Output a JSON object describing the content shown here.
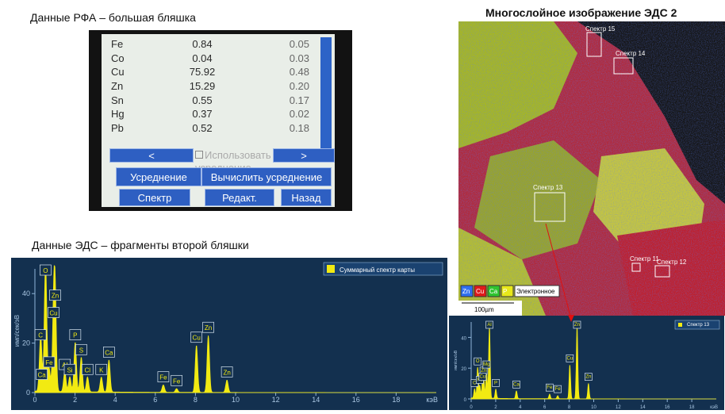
{
  "captions": {
    "xrf_title": "Данные РФА – большая бляшка",
    "eds_title": "Данные ЭДС – фрагменты второй бляшки",
    "map_title": "Многослойное изображение ЭДС 2"
  },
  "xrf": {
    "rows": [
      {
        "el": "Fe",
        "val": "0.84",
        "err": "0.05"
      },
      {
        "el": "Co",
        "val": "0.04",
        "err": "0.03"
      },
      {
        "el": "Cu",
        "val": "75.92",
        "err": "0.48"
      },
      {
        "el": "Zn",
        "val": "15.29",
        "err": "0.20"
      },
      {
        "el": "Sn",
        "val": "0.55",
        "err": "0.17"
      },
      {
        "el": "Hg",
        "val": "0.37",
        "err": "0.02"
      },
      {
        "el": "Pb",
        "val": "0.52",
        "err": "0.18"
      }
    ],
    "prev_label": "<",
    "next_label": ">",
    "average_checkbox": "Использовать усреднение",
    "btn_average": "Усреднение",
    "btn_compute": "Вычислить усреднение",
    "btn_spectrum": "Спектр",
    "btn_edit": "Редакт.",
    "btn_back": "Назад"
  },
  "map": {
    "spectra_labels": [
      "Спектр 15",
      "Спектр 14",
      "Спектр 13",
      "Спектр 12",
      "Спектр 11"
    ],
    "legend": [
      "Zn",
      "Cu",
      "Ca",
      "P",
      "Электронное"
    ],
    "legend_colors": [
      "#2f6ff0",
      "#e01a1a",
      "#2fc42f",
      "#e8e81a",
      "#ffffff"
    ],
    "scale_label": "100µm"
  },
  "chart_data": [
    {
      "type": "line",
      "title": "",
      "xlabel": "кэВ",
      "ylabel": "имп/сек/эВ",
      "xlim": [
        0,
        20
      ],
      "ylim": [
        0,
        50
      ],
      "xticks": [
        0,
        2,
        4,
        6,
        8,
        10,
        12,
        14,
        16,
        18
      ],
      "yticks": [
        0,
        20,
        40
      ],
      "legend": "Суммарный спектр карты",
      "legend_position": "top-right",
      "series_color": "#f2ea12",
      "peaks": [
        {
          "label": "C",
          "x": 0.28,
          "y": 20
        },
        {
          "label": "O",
          "x": 0.53,
          "y": 52
        },
        {
          "label": "Fe",
          "x": 0.71,
          "y": 9
        },
        {
          "label": "Ca",
          "x": 0.34,
          "y": 4
        },
        {
          "label": "Zn",
          "x": 1.01,
          "y": 36
        },
        {
          "label": "Cu",
          "x": 0.93,
          "y": 29
        },
        {
          "label": "Al",
          "x": 1.49,
          "y": 8
        },
        {
          "label": "Si",
          "x": 1.74,
          "y": 6
        },
        {
          "label": "P",
          "x": 2.01,
          "y": 20
        },
        {
          "label": "S",
          "x": 2.31,
          "y": 14
        },
        {
          "label": "Cl",
          "x": 2.62,
          "y": 6
        },
        {
          "label": "K",
          "x": 3.31,
          "y": 6
        },
        {
          "label": "Ca",
          "x": 3.69,
          "y": 13
        },
        {
          "label": "Fe",
          "x": 6.4,
          "y": 3
        },
        {
          "label": "Fe",
          "x": 7.06,
          "y": 1.5
        },
        {
          "label": "Cu",
          "x": 8.05,
          "y": 19
        },
        {
          "label": "Zn",
          "x": 8.64,
          "y": 23
        },
        {
          "label": "Zn",
          "x": 9.57,
          "y": 5
        }
      ]
    },
    {
      "type": "line",
      "title": "",
      "xlabel": "кэВ",
      "ylabel": "имп/сек/эВ",
      "xlim": [
        0,
        20
      ],
      "ylim": [
        0,
        50
      ],
      "xticks": [
        0,
        2,
        4,
        6,
        8,
        10,
        12,
        14,
        16,
        18
      ],
      "yticks": [
        0,
        20,
        40
      ],
      "legend": "Спектр 13",
      "legend_position": "top-right",
      "series_color": "#f2ea12",
      "peaks": [
        {
          "label": "C",
          "x": 0.28,
          "y": 6
        },
        {
          "label": "O",
          "x": 0.53,
          "y": 20
        },
        {
          "label": "Fe",
          "x": 0.71,
          "y": 8
        },
        {
          "label": "Zn",
          "x": 1.01,
          "y": 14
        },
        {
          "label": "Cu",
          "x": 0.93,
          "y": 10
        },
        {
          "label": "Mg",
          "x": 1.25,
          "y": 18
        },
        {
          "label": "Al",
          "x": 1.49,
          "y": 47
        },
        {
          "label": "P",
          "x": 2.01,
          "y": 6
        },
        {
          "label": "Ca",
          "x": 3.69,
          "y": 5
        },
        {
          "label": "Fe",
          "x": 6.4,
          "y": 3
        },
        {
          "label": "Fe",
          "x": 7.06,
          "y": 2
        },
        {
          "label": "Cu",
          "x": 8.05,
          "y": 22
        },
        {
          "label": "Zn",
          "x": 8.64,
          "y": 47
        },
        {
          "label": "Zn",
          "x": 9.57,
          "y": 10
        }
      ]
    }
  ]
}
